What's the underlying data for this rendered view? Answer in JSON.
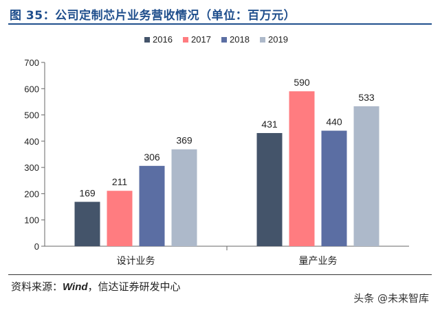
{
  "header": {
    "title": "图 35：公司定制芯片业务营收情况（单位：百万元）"
  },
  "footer": {
    "source_prefix": "资料来源：",
    "source_em": "Wind",
    "source_suffix": "，信达证券研发中心"
  },
  "watermark": {
    "text": "头条 @未来智库"
  },
  "colors": {
    "series_2016": "#44546a",
    "series_2017": "#ff7c80",
    "series_2018": "#5b6ea3",
    "series_2019": "#adb9ca",
    "title": "#1f4e8c"
  },
  "chart_data": {
    "type": "bar",
    "title": "",
    "xlabel": "",
    "ylabel": "",
    "categories": [
      "设计业务",
      "量产业务"
    ],
    "series": [
      {
        "name": "2016",
        "values": [
          169,
          431
        ]
      },
      {
        "name": "2017",
        "values": [
          211,
          590
        ]
      },
      {
        "name": "2018",
        "values": [
          306,
          440
        ]
      },
      {
        "name": "2019",
        "values": [
          369,
          533
        ]
      }
    ],
    "ylim": [
      0,
      700
    ],
    "yticks": [
      0,
      100,
      200,
      300,
      400,
      500,
      600,
      700
    ],
    "legend": "top-center",
    "grid": false
  }
}
